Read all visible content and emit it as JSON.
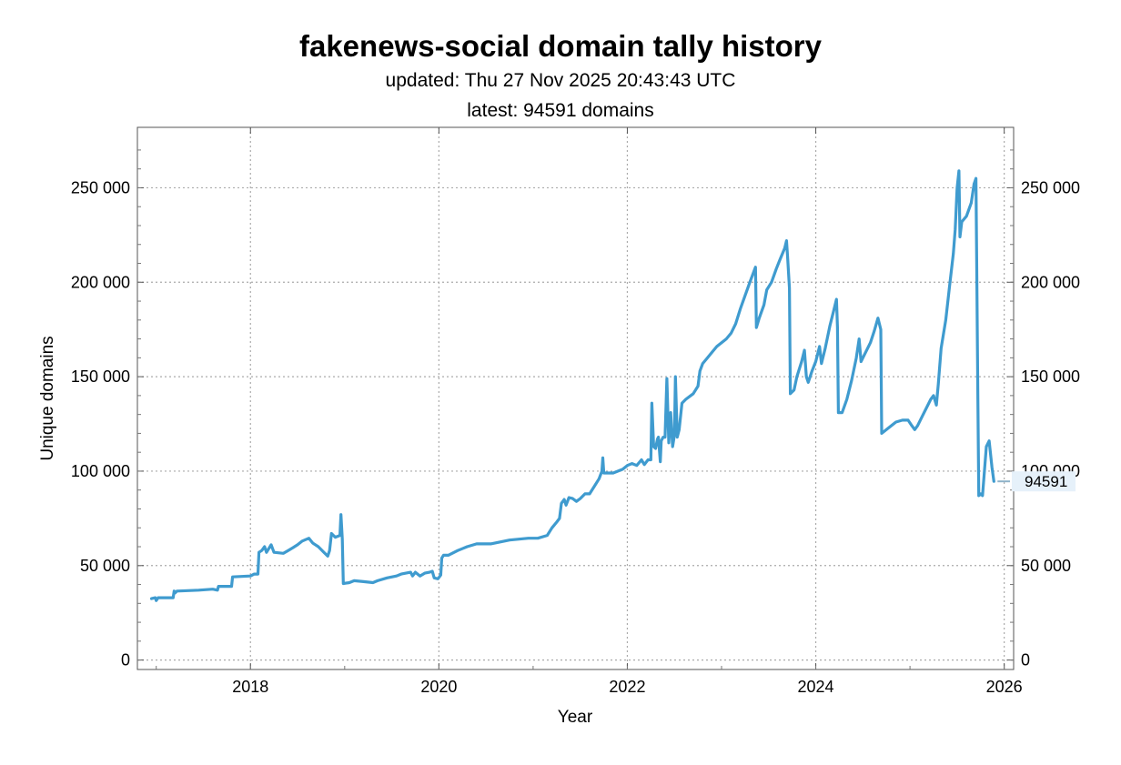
{
  "chart_data": {
    "type": "line",
    "title": "fakenews-social domain tally history",
    "subtitle_lines": [
      "updated: Thu 27 Nov 2025 20:43:43 UTC",
      "latest: 94591 domains"
    ],
    "xlabel": "Year",
    "ylabel": "Unique domains",
    "xlim": [
      2016.8,
      2026.1
    ],
    "ylim": [
      -5000,
      282000
    ],
    "x_ticks": [
      2018,
      2020,
      2022,
      2024,
      2026
    ],
    "y_ticks": [
      0,
      50000,
      100000,
      150000,
      200000,
      250000
    ],
    "y_tick_labels": [
      "0",
      "50 000",
      "100 000",
      "150 000",
      "200 000",
      "250 000"
    ],
    "grid": true,
    "line_color": "#3f9bcf",
    "last_value_label": "94591",
    "series": [
      {
        "points": [
          [
            2016.95,
            32500
          ],
          [
            2016.99,
            33000
          ],
          [
            2017.0,
            31500
          ],
          [
            2017.02,
            33000
          ],
          [
            2017.1,
            33000
          ],
          [
            2017.18,
            33000
          ],
          [
            2017.19,
            36500
          ],
          [
            2017.2,
            35500
          ],
          [
            2017.22,
            36500
          ],
          [
            2017.45,
            37000
          ],
          [
            2017.6,
            37500
          ],
          [
            2017.65,
            37000
          ],
          [
            2017.66,
            39000
          ],
          [
            2017.8,
            39000
          ],
          [
            2017.81,
            44000
          ],
          [
            2018.0,
            44500
          ],
          [
            2018.04,
            45500
          ],
          [
            2018.08,
            45500
          ],
          [
            2018.09,
            57000
          ],
          [
            2018.12,
            58000
          ],
          [
            2018.15,
            60000
          ],
          [
            2018.17,
            57000
          ],
          [
            2018.22,
            61000
          ],
          [
            2018.25,
            57000
          ],
          [
            2018.35,
            56500
          ],
          [
            2018.4,
            58000
          ],
          [
            2018.45,
            59500
          ],
          [
            2018.5,
            61000
          ],
          [
            2018.55,
            63000
          ],
          [
            2018.62,
            64500
          ],
          [
            2018.66,
            62000
          ],
          [
            2018.72,
            60000
          ],
          [
            2018.78,
            57000
          ],
          [
            2018.82,
            55000
          ],
          [
            2018.84,
            58000
          ],
          [
            2018.86,
            67000
          ],
          [
            2018.9,
            65000
          ],
          [
            2018.95,
            66000
          ],
          [
            2018.96,
            77000
          ],
          [
            2018.975,
            64000
          ],
          [
            2018.985,
            40500
          ],
          [
            2019.05,
            41000
          ],
          [
            2019.1,
            42000
          ],
          [
            2019.2,
            41500
          ],
          [
            2019.3,
            41000
          ],
          [
            2019.35,
            42000
          ],
          [
            2019.45,
            43500
          ],
          [
            2019.55,
            44500
          ],
          [
            2019.6,
            45500
          ],
          [
            2019.65,
            46000
          ],
          [
            2019.7,
            46500
          ],
          [
            2019.72,
            44500
          ],
          [
            2019.75,
            46500
          ],
          [
            2019.8,
            44500
          ],
          [
            2019.85,
            46000
          ],
          [
            2019.9,
            46500
          ],
          [
            2019.93,
            47000
          ],
          [
            2019.95,
            43500
          ],
          [
            2019.99,
            43000
          ],
          [
            2020.02,
            45000
          ],
          [
            2020.03,
            54000
          ],
          [
            2020.05,
            55500
          ],
          [
            2020.1,
            55500
          ],
          [
            2020.2,
            58000
          ],
          [
            2020.3,
            60000
          ],
          [
            2020.4,
            61500
          ],
          [
            2020.55,
            61500
          ],
          [
            2020.65,
            62500
          ],
          [
            2020.75,
            63500
          ],
          [
            2020.85,
            64000
          ],
          [
            2020.95,
            64500
          ],
          [
            2021.05,
            64500
          ],
          [
            2021.15,
            66000
          ],
          [
            2021.2,
            70000
          ],
          [
            2021.25,
            73000
          ],
          [
            2021.28,
            75000
          ],
          [
            2021.3,
            83000
          ],
          [
            2021.33,
            85000
          ],
          [
            2021.35,
            82000
          ],
          [
            2021.38,
            86000
          ],
          [
            2021.42,
            85500
          ],
          [
            2021.46,
            84000
          ],
          [
            2021.5,
            85500
          ],
          [
            2021.55,
            88000
          ],
          [
            2021.6,
            88000
          ],
          [
            2021.65,
            92000
          ],
          [
            2021.7,
            96000
          ],
          [
            2021.73,
            100000
          ],
          [
            2021.74,
            107000
          ],
          [
            2021.75,
            99000
          ],
          [
            2021.85,
            99000
          ],
          [
            2021.95,
            101000
          ],
          [
            2022.0,
            103000
          ],
          [
            2022.05,
            104000
          ],
          [
            2022.1,
            103000
          ],
          [
            2022.15,
            106000
          ],
          [
            2022.18,
            103500
          ],
          [
            2022.22,
            106000
          ],
          [
            2022.25,
            106000
          ],
          [
            2022.26,
            136000
          ],
          [
            2022.28,
            113000
          ],
          [
            2022.3,
            112000
          ],
          [
            2022.32,
            117000
          ],
          [
            2022.33,
            118000
          ],
          [
            2022.35,
            105000
          ],
          [
            2022.36,
            116000
          ],
          [
            2022.38,
            118000
          ],
          [
            2022.4,
            118000
          ],
          [
            2022.42,
            149000
          ],
          [
            2022.44,
            115000
          ],
          [
            2022.46,
            131000
          ],
          [
            2022.48,
            113000
          ],
          [
            2022.5,
            119000
          ],
          [
            2022.51,
            150000
          ],
          [
            2022.53,
            118000
          ],
          [
            2022.55,
            122000
          ],
          [
            2022.58,
            136000
          ],
          [
            2022.62,
            138000
          ],
          [
            2022.7,
            141000
          ],
          [
            2022.75,
            145000
          ],
          [
            2022.77,
            153000
          ],
          [
            2022.8,
            157000
          ],
          [
            2022.85,
            160000
          ],
          [
            2022.9,
            163000
          ],
          [
            2022.95,
            166000
          ],
          [
            2023.0,
            168000
          ],
          [
            2023.05,
            170000
          ],
          [
            2023.1,
            173000
          ],
          [
            2023.15,
            178000
          ],
          [
            2023.2,
            186000
          ],
          [
            2023.25,
            193000
          ],
          [
            2023.3,
            200000
          ],
          [
            2023.36,
            208000
          ],
          [
            2023.37,
            176000
          ],
          [
            2023.4,
            181000
          ],
          [
            2023.45,
            188000
          ],
          [
            2023.48,
            196000
          ],
          [
            2023.53,
            200000
          ],
          [
            2023.58,
            207000
          ],
          [
            2023.62,
            212000
          ],
          [
            2023.67,
            218000
          ],
          [
            2023.69,
            222000
          ],
          [
            2023.7,
            214000
          ],
          [
            2023.72,
            197000
          ],
          [
            2023.73,
            141000
          ],
          [
            2023.77,
            143000
          ],
          [
            2023.8,
            150000
          ],
          [
            2023.85,
            158000
          ],
          [
            2023.88,
            164000
          ],
          [
            2023.9,
            150000
          ],
          [
            2023.92,
            147000
          ],
          [
            2023.96,
            153000
          ],
          [
            2024.0,
            158000
          ],
          [
            2024.04,
            166000
          ],
          [
            2024.06,
            157000
          ],
          [
            2024.1,
            165000
          ],
          [
            2024.15,
            177000
          ],
          [
            2024.2,
            187000
          ],
          [
            2024.22,
            191000
          ],
          [
            2024.23,
            176000
          ],
          [
            2024.24,
            131000
          ],
          [
            2024.28,
            131000
          ],
          [
            2024.33,
            138000
          ],
          [
            2024.38,
            148000
          ],
          [
            2024.43,
            160000
          ],
          [
            2024.46,
            170000
          ],
          [
            2024.48,
            158000
          ],
          [
            2024.52,
            162000
          ],
          [
            2024.58,
            168000
          ],
          [
            2024.62,
            174000
          ],
          [
            2024.66,
            181000
          ],
          [
            2024.69,
            175000
          ],
          [
            2024.7,
            120000
          ],
          [
            2024.75,
            122000
          ],
          [
            2024.8,
            124000
          ],
          [
            2024.85,
            126000
          ],
          [
            2024.92,
            127000
          ],
          [
            2024.98,
            127000
          ],
          [
            2025.02,
            124000
          ],
          [
            2025.05,
            122000
          ],
          [
            2025.08,
            124000
          ],
          [
            2025.12,
            128000
          ],
          [
            2025.17,
            133000
          ],
          [
            2025.22,
            138000
          ],
          [
            2025.25,
            140000
          ],
          [
            2025.28,
            135000
          ],
          [
            2025.3,
            146000
          ],
          [
            2025.33,
            165000
          ],
          [
            2025.38,
            180000
          ],
          [
            2025.42,
            198000
          ],
          [
            2025.46,
            215000
          ],
          [
            2025.48,
            228000
          ],
          [
            2025.5,
            250000
          ],
          [
            2025.52,
            259000
          ],
          [
            2025.53,
            224000
          ],
          [
            2025.55,
            232000
          ],
          [
            2025.6,
            235000
          ],
          [
            2025.65,
            242000
          ],
          [
            2025.68,
            252000
          ],
          [
            2025.7,
            255000
          ],
          [
            2025.71,
            200000
          ],
          [
            2025.72,
            138000
          ],
          [
            2025.73,
            87000
          ],
          [
            2025.75,
            88000
          ],
          [
            2025.77,
            87000
          ],
          [
            2025.79,
            100000
          ],
          [
            2025.81,
            113000
          ],
          [
            2025.84,
            116000
          ],
          [
            2025.87,
            102000
          ],
          [
            2025.89,
            94591
          ]
        ]
      }
    ]
  }
}
